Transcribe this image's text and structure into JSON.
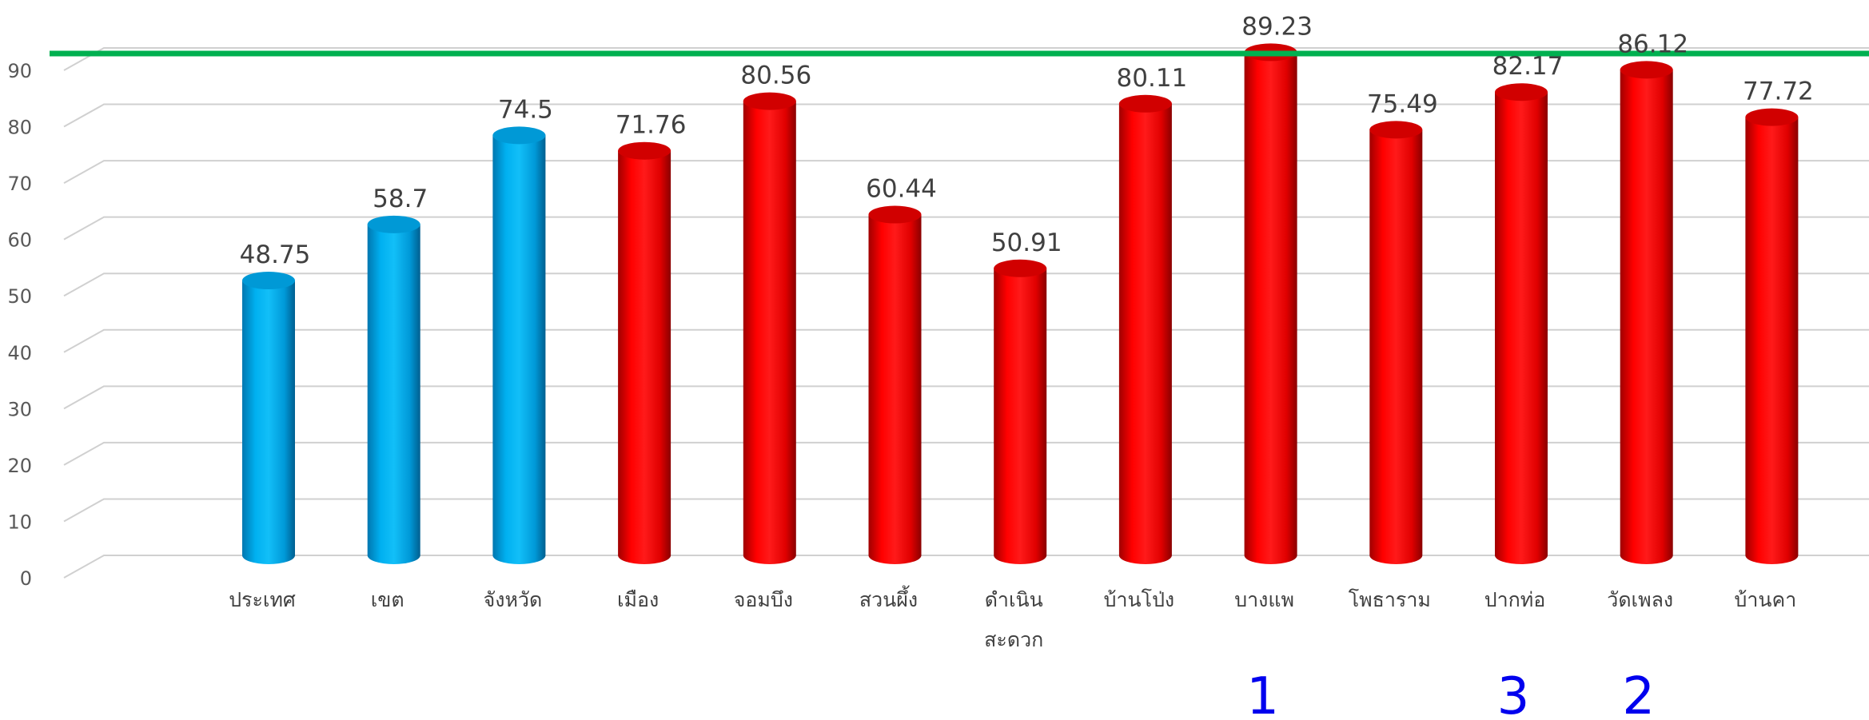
{
  "chart_data": {
    "type": "bar",
    "title": "",
    "xlabel": "",
    "ylabel": "",
    "ylim": [
      0,
      90
    ],
    "yticks": [
      "0",
      "10",
      "20",
      "30",
      "40",
      "50",
      "60",
      "70",
      "80",
      "90"
    ],
    "grid": true,
    "categories": [
      {
        "label": [
          "ประเทศ"
        ],
        "value": 48.75,
        "value_label": "48.75",
        "color": "#00b0f0"
      },
      {
        "label": [
          "เขต"
        ],
        "value": 58.7,
        "value_label": "58.7",
        "color": "#00b0f0"
      },
      {
        "label": [
          "จังหวัด"
        ],
        "value": 74.5,
        "value_label": "74.5",
        "color": "#00b0f0"
      },
      {
        "label": [
          "เมือง"
        ],
        "value": 71.76,
        "value_label": "71.76",
        "color": "#ff0000"
      },
      {
        "label": [
          "จอมบึง"
        ],
        "value": 80.56,
        "value_label": "80.56",
        "color": "#ff0000"
      },
      {
        "label": [
          "สวนผึ้ง"
        ],
        "value": 60.44,
        "value_label": "60.44",
        "color": "#ff0000"
      },
      {
        "label": [
          "ดำเนิน",
          "สะดวก"
        ],
        "value": 50.91,
        "value_label": "50.91",
        "color": "#ff0000"
      },
      {
        "label": [
          "บ้านโป่ง"
        ],
        "value": 80.11,
        "value_label": "80.11",
        "color": "#ff0000"
      },
      {
        "label": [
          "บางแพ"
        ],
        "value": 89.23,
        "value_label": "89.23",
        "color": "#ff0000",
        "rank": "1"
      },
      {
        "label": [
          "โพธาราม"
        ],
        "value": 75.49,
        "value_label": "75.49",
        "color": "#ff0000"
      },
      {
        "label": [
          "ปากท่อ"
        ],
        "value": 82.17,
        "value_label": "82.17",
        "color": "#ff0000",
        "rank": "3"
      },
      {
        "label": [
          "วัดเพลง"
        ],
        "value": 86.12,
        "value_label": "86.12",
        "color": "#ff0000",
        "rank": "2"
      },
      {
        "label": [
          "บ้านคา"
        ],
        "value": 77.72,
        "value_label": "77.72",
        "color": "#ff0000"
      }
    ],
    "target_line": {
      "value": 90,
      "color": "#00b050"
    },
    "rank_color": "#0000ee"
  }
}
